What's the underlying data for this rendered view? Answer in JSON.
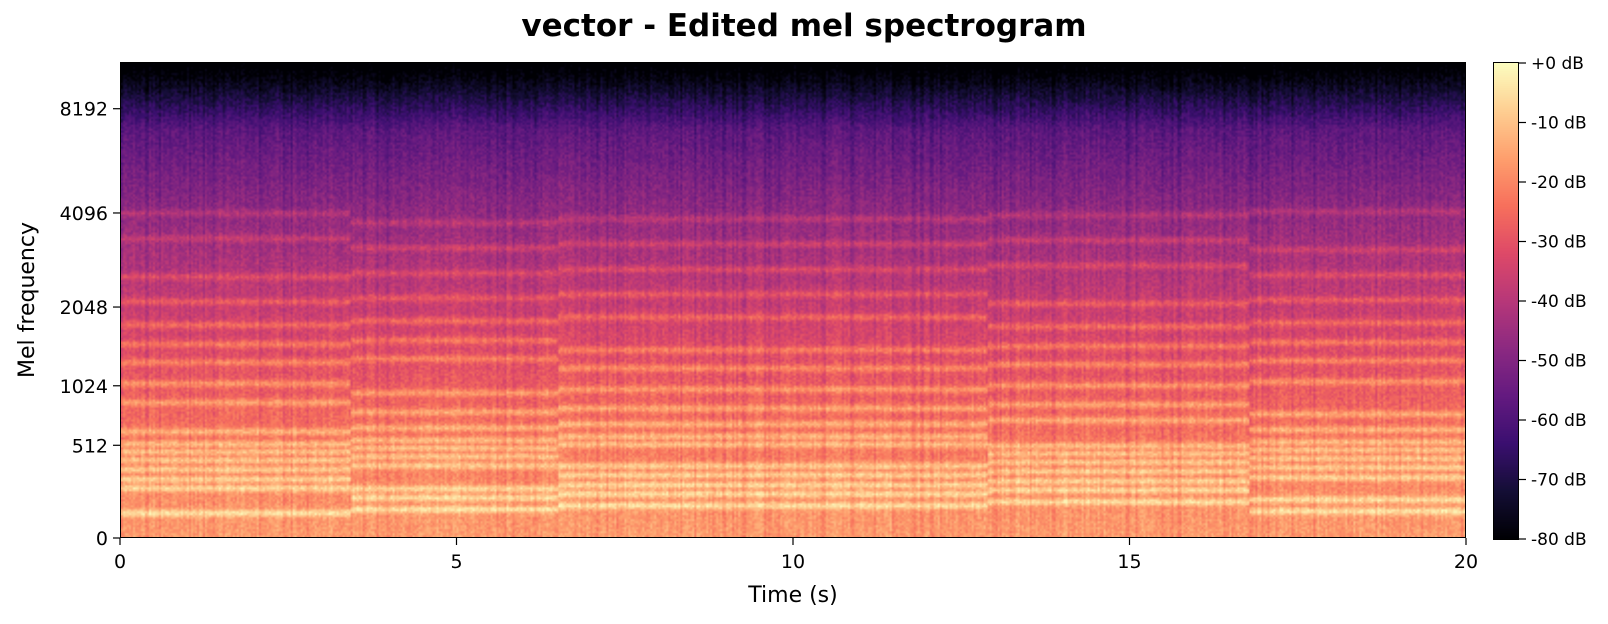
{
  "chart_data": {
    "type": "heatmap",
    "title": "vector - Edited mel spectrogram",
    "xlabel": "Time (s)",
    "ylabel": "Mel frequency",
    "xlim": [
      0,
      20
    ],
    "x_ticks": [
      0,
      5,
      10,
      15,
      20
    ],
    "x_tick_labels": [
      "0",
      "5",
      "10",
      "15",
      "20"
    ],
    "y_scale": "mel",
    "y_ticks": [
      0,
      512,
      1024,
      2048,
      4096,
      8192
    ],
    "y_tick_labels": [
      "0",
      "512",
      "1024",
      "2048",
      "4096",
      "8192"
    ],
    "y_max_hz": 11025,
    "colormap": "magma",
    "colorbar": {
      "range": [
        -80,
        0
      ],
      "ticks": [
        0,
        -10,
        -20,
        -30,
        -40,
        -50,
        -60,
        -70,
        -80
      ],
      "tick_labels": [
        "+0 dB",
        "-10 dB",
        "-20 dB",
        "-30 dB",
        "-40 dB",
        "-50 dB",
        "-60 dB",
        "-70 dB",
        "-80 dB"
      ]
    },
    "segment_boundaries_s": [
      3.4,
      6.5,
      12.9,
      16.8
    ],
    "harmonic_bands_hz": [
      130,
      200,
      260,
      330,
      400,
      470,
      540,
      650,
      800,
      1000,
      1250,
      1500,
      1800,
      2200,
      2700,
      3300,
      4000
    ],
    "grid": false,
    "legend": "colorbar-right"
  }
}
